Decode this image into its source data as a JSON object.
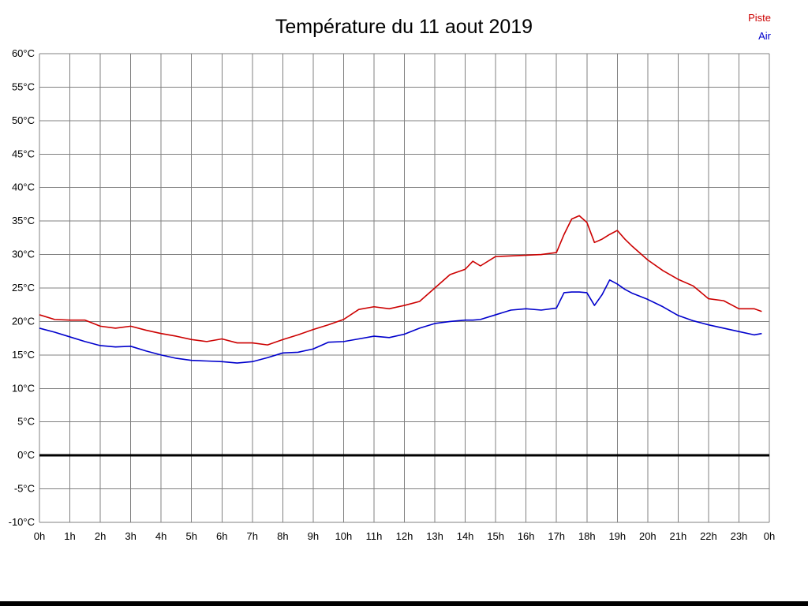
{
  "chart_data": {
    "type": "line",
    "title": "Température du 11 aout 2019",
    "xlabel": "",
    "ylabel": "",
    "xlim": [
      0,
      24
    ],
    "ylim": [
      -10,
      60
    ],
    "grid": true,
    "grid_color": "#808080",
    "zero_line": true,
    "legend_position": "top-right",
    "x_tick_values": [
      0,
      1,
      2,
      3,
      4,
      5,
      6,
      7,
      8,
      9,
      10,
      11,
      12,
      13,
      14,
      15,
      16,
      17,
      18,
      19,
      20,
      21,
      22,
      23,
      24
    ],
    "x_tick_labels": [
      "0h",
      "1h",
      "2h",
      "3h",
      "4h",
      "5h",
      "6h",
      "7h",
      "8h",
      "9h",
      "10h",
      "11h",
      "12h",
      "13h",
      "14h",
      "15h",
      "16h",
      "17h",
      "18h",
      "19h",
      "20h",
      "21h",
      "22h",
      "23h",
      "0h"
    ],
    "y_tick_values": [
      60,
      55,
      50,
      45,
      40,
      35,
      30,
      25,
      20,
      15,
      10,
      5,
      0,
      -5,
      -10
    ],
    "y_tick_labels": [
      "60°C",
      "55°C",
      "50°C",
      "45°C",
      "40°C",
      "35°C",
      "30°C",
      "25°C",
      "20°C",
      "15°C",
      "10°C",
      "5°C",
      "0°C",
      "-5°C",
      "-10°C"
    ],
    "series": [
      {
        "name": "Piste",
        "color": "#cc0000",
        "x": [
          0,
          0.5,
          1,
          1.5,
          2,
          2.5,
          3,
          3.5,
          4,
          4.5,
          5,
          5.5,
          6,
          6.5,
          7,
          7.5,
          8,
          8.5,
          9,
          9.5,
          10,
          10.5,
          11,
          11.5,
          12,
          12.5,
          13,
          13.5,
          14,
          14.25,
          14.5,
          15,
          15.5,
          16,
          16.5,
          17,
          17.25,
          17.5,
          17.75,
          18,
          18.25,
          18.5,
          18.75,
          19,
          19.25,
          19.5,
          20,
          20.5,
          21,
          21.5,
          22,
          22.5,
          23,
          23.5,
          23.75
        ],
        "values": [
          21,
          20.3,
          20.2,
          20.2,
          19.3,
          19,
          19.3,
          18.7,
          18.2,
          17.8,
          17.3,
          17,
          17.4,
          16.8,
          16.8,
          16.5,
          17.3,
          18,
          18.8,
          19.5,
          20.3,
          21.8,
          22.2,
          21.9,
          22.4,
          23,
          25,
          27,
          27.8,
          29,
          28.3,
          29.7,
          29.8,
          29.9,
          30,
          30.3,
          33,
          35.3,
          35.8,
          34.8,
          31.8,
          32.3,
          33,
          33.6,
          32.3,
          31.2,
          29.2,
          27.6,
          26.3,
          25.3,
          23.4,
          23.1,
          21.9,
          21.9,
          21.5
        ]
      },
      {
        "name": "Air",
        "color": "#0000cc",
        "x": [
          0,
          0.5,
          1,
          1.5,
          2,
          2.5,
          3,
          3.5,
          4,
          4.5,
          5,
          5.5,
          6,
          6.5,
          7,
          7.5,
          8,
          8.5,
          9,
          9.5,
          10,
          10.5,
          11,
          11.5,
          12,
          12.5,
          13,
          13.5,
          14,
          14.25,
          14.5,
          15,
          15.5,
          16,
          16.5,
          17,
          17.25,
          17.5,
          17.75,
          18,
          18.25,
          18.5,
          18.75,
          19,
          19.25,
          19.5,
          20,
          20.5,
          21,
          21.5,
          22,
          22.5,
          23,
          23.5,
          23.75
        ],
        "values": [
          19,
          18.4,
          17.7,
          17,
          16.4,
          16.2,
          16.3,
          15.6,
          15,
          14.5,
          14.2,
          14.1,
          14,
          13.8,
          14,
          14.6,
          15.3,
          15.4,
          15.9,
          16.9,
          17,
          17.4,
          17.8,
          17.6,
          18.1,
          19,
          19.7,
          20,
          20.2,
          20.2,
          20.3,
          21,
          21.7,
          21.9,
          21.7,
          22,
          24.3,
          24.4,
          24.4,
          24.3,
          22.4,
          24,
          26.2,
          25.6,
          24.8,
          24.2,
          23.3,
          22.2,
          20.9,
          20.1,
          19.5,
          19,
          18.5,
          18,
          18.2
        ]
      }
    ]
  }
}
